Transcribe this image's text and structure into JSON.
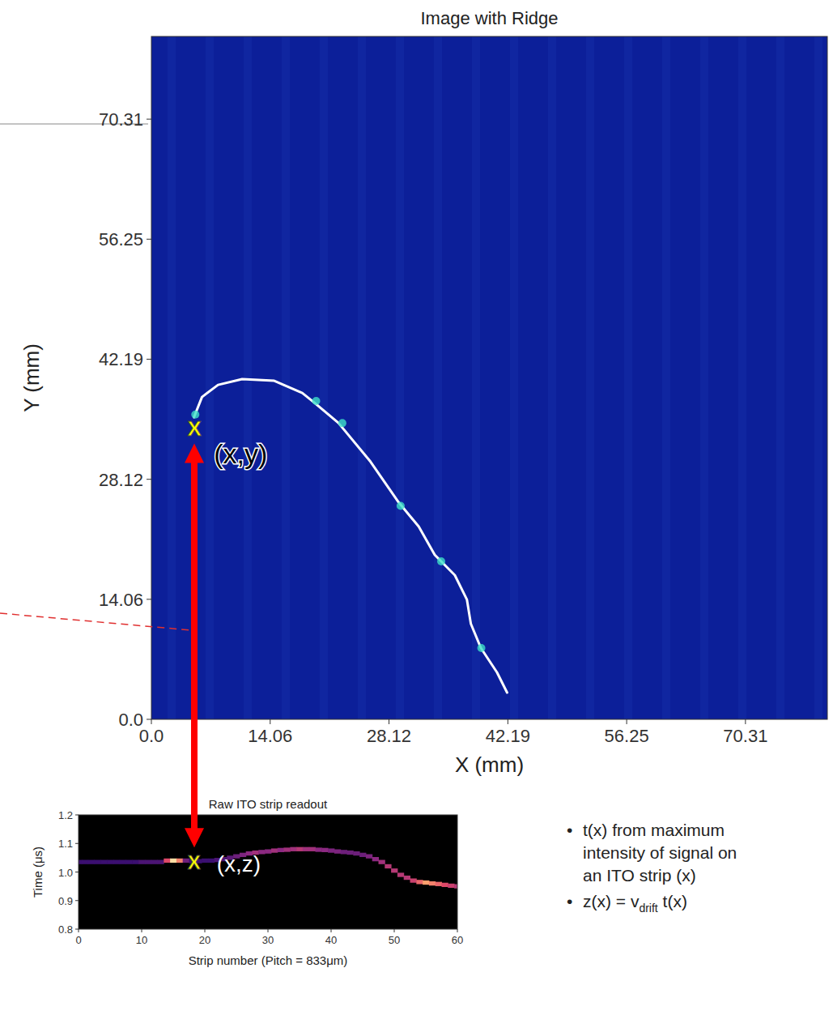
{
  "chart_data": [
    {
      "type": "line",
      "title": "Image with Ridge",
      "x_label": "X (mm)",
      "y_label": "Y (mm)",
      "xlim": [
        0,
        80
      ],
      "ylim": [
        0,
        80
      ],
      "xticks": [
        {
          "value": 0,
          "label": "0.0"
        },
        14.06,
        28.12,
        42.19,
        56.25,
        70.31
      ],
      "yticks": [
        {
          "value": 0,
          "label": "0.0"
        },
        14.06,
        28.12,
        42.19,
        56.25,
        70.31
      ],
      "grid": false,
      "series": [
        {
          "type": "line",
          "color": "#ffffff",
          "line_style": "solid",
          "x": [
            5.04,
            5.99,
            7.89,
            10.74,
            14.54,
            17.86,
            19.29,
            22.14,
            25.94,
            29.26,
            31.64,
            33.54,
            35.91,
            37.34,
            37.81,
            39.0,
            40.9,
            42.1
          ],
          "values": [
            35.39,
            37.76,
            39.18,
            39.85,
            39.66,
            38.24,
            37.1,
            34.72,
            30.17,
            25.43,
            22.58,
            19.26,
            16.89,
            14.04,
            11.2,
            8.35,
            5.5,
            3.13
          ]
        },
        {
          "type": "scatter",
          "color": "#3fe0c8",
          "marker": "circle",
          "x": [
            5.2,
            19.5,
            22.6,
            29.5,
            34.3,
            39.05
          ],
          "values": [
            35.7,
            37.3,
            34.7,
            25.0,
            18.5,
            8.35
          ]
        }
      ],
      "annotations": [
        {
          "marker": "X",
          "label": "(x,y)",
          "x": 5.1,
          "y": 34.2
        }
      ]
    },
    {
      "type": "heatmap",
      "title": "Raw ITO strip readout",
      "x_label": "Strip number (Pitch = 833μm)",
      "y_label": "Time (μs)",
      "xlim": [
        0,
        60
      ],
      "ylim": [
        0.8,
        1.2
      ],
      "xticks": [
        0,
        10,
        20,
        30,
        40,
        50,
        60
      ],
      "yticks": [
        0.8,
        0.9,
        {
          "value": 1,
          "label": "1.0"
        },
        1.1,
        1.2
      ],
      "x": [
        0,
        1,
        2,
        3,
        4,
        5,
        6,
        7,
        8,
        9,
        10,
        11,
        12,
        13,
        14,
        15,
        16,
        17,
        18,
        19,
        20,
        21,
        22,
        23,
        24,
        25,
        26,
        27,
        28,
        29,
        30,
        31,
        32,
        33,
        34,
        35,
        36,
        37,
        38,
        39,
        40,
        41,
        42,
        43,
        44,
        45,
        46,
        47,
        48,
        49,
        50,
        51,
        52,
        53,
        54,
        55,
        56,
        57,
        58,
        59,
        60
      ],
      "values": [
        1.035,
        1.035,
        1.035,
        1.035,
        1.035,
        1.035,
        1.035,
        1.035,
        1.035,
        1.035,
        1.035,
        1.035,
        1.035,
        1.035,
        1.04,
        1.04,
        1.04,
        1.04,
        1.038,
        1.038,
        1.04,
        1.04,
        1.042,
        1.045,
        1.05,
        1.055,
        1.06,
        1.065,
        1.068,
        1.07,
        1.072,
        1.075,
        1.077,
        1.078,
        1.08,
        1.08,
        1.08,
        1.08,
        1.078,
        1.077,
        1.075,
        1.072,
        1.07,
        1.068,
        1.065,
        1.06,
        1.055,
        1.045,
        1.035,
        1.02,
        1.005,
        0.99,
        0.98,
        0.97,
        0.965,
        0.963,
        0.96,
        0.958,
        0.955,
        0.952,
        0.95
      ],
      "intensity": [
        0.25,
        0.25,
        0.25,
        0.25,
        0.25,
        0.25,
        0.25,
        0.25,
        0.25,
        0.25,
        0.3,
        0.3,
        0.3,
        0.3,
        0.7,
        0.95,
        0.8,
        0.4,
        0.25,
        0.25,
        0.25,
        0.25,
        0.3,
        0.3,
        0.35,
        0.4,
        0.45,
        0.5,
        0.55,
        0.5,
        0.5,
        0.55,
        0.5,
        0.55,
        0.55,
        0.6,
        0.55,
        0.55,
        0.5,
        0.5,
        0.45,
        0.45,
        0.4,
        0.4,
        0.4,
        0.4,
        0.45,
        0.5,
        0.55,
        0.6,
        0.6,
        0.6,
        0.6,
        0.65,
        0.75,
        0.85,
        0.8,
        0.75,
        0.7,
        0.65,
        0.6
      ],
      "annotations": [
        {
          "marker": "X",
          "label": "(x,z)",
          "x": 18.3,
          "y": 1.035
        }
      ]
    }
  ],
  "notes": {
    "bullet": "•",
    "items": [
      {
        "lines": [
          "t(x) from maximum",
          "intensity of signal on",
          "an ITO strip (x)"
        ]
      },
      {
        "text": "z(x) = v",
        "sub": "drift",
        "tail": " t(x)"
      }
    ]
  }
}
